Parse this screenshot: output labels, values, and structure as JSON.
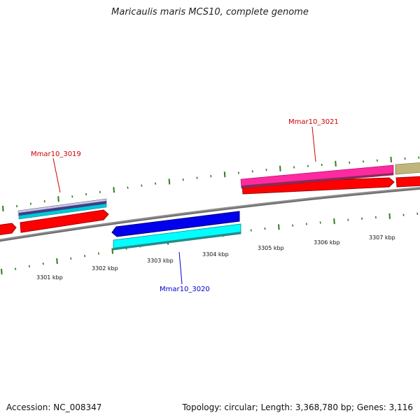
{
  "title": "Maricaulis maris MCS10, complete genome",
  "footer": {
    "accession": "Accession: NC_008347",
    "topology": "Topology: circular; Length: 3,368,780 bp; Genes: 3,116"
  },
  "colors": {
    "backbone": "#8c8c8c",
    "tick": "#2e7d1f",
    "label_forward": "#cc0000",
    "label_reverse": "#0000cc",
    "cds_red": "#ff0000",
    "magenta": "#ff2aa0",
    "blue": "#0000ee",
    "cyan": "#00ffff",
    "olive": "#c0b57a"
  },
  "scale_labels": [
    "3301 kbp",
    "3302 kbp",
    "3303 kbp",
    "3304 kbp",
    "3305 kbp",
    "3306 kbp",
    "3307 kbp"
  ],
  "gene_labels": [
    {
      "text": "Mmar10_3019",
      "strand": "forward"
    },
    {
      "text": "Mmar10_3020",
      "strand": "reverse"
    },
    {
      "text": "Mmar10_3021",
      "strand": "forward"
    }
  ]
}
